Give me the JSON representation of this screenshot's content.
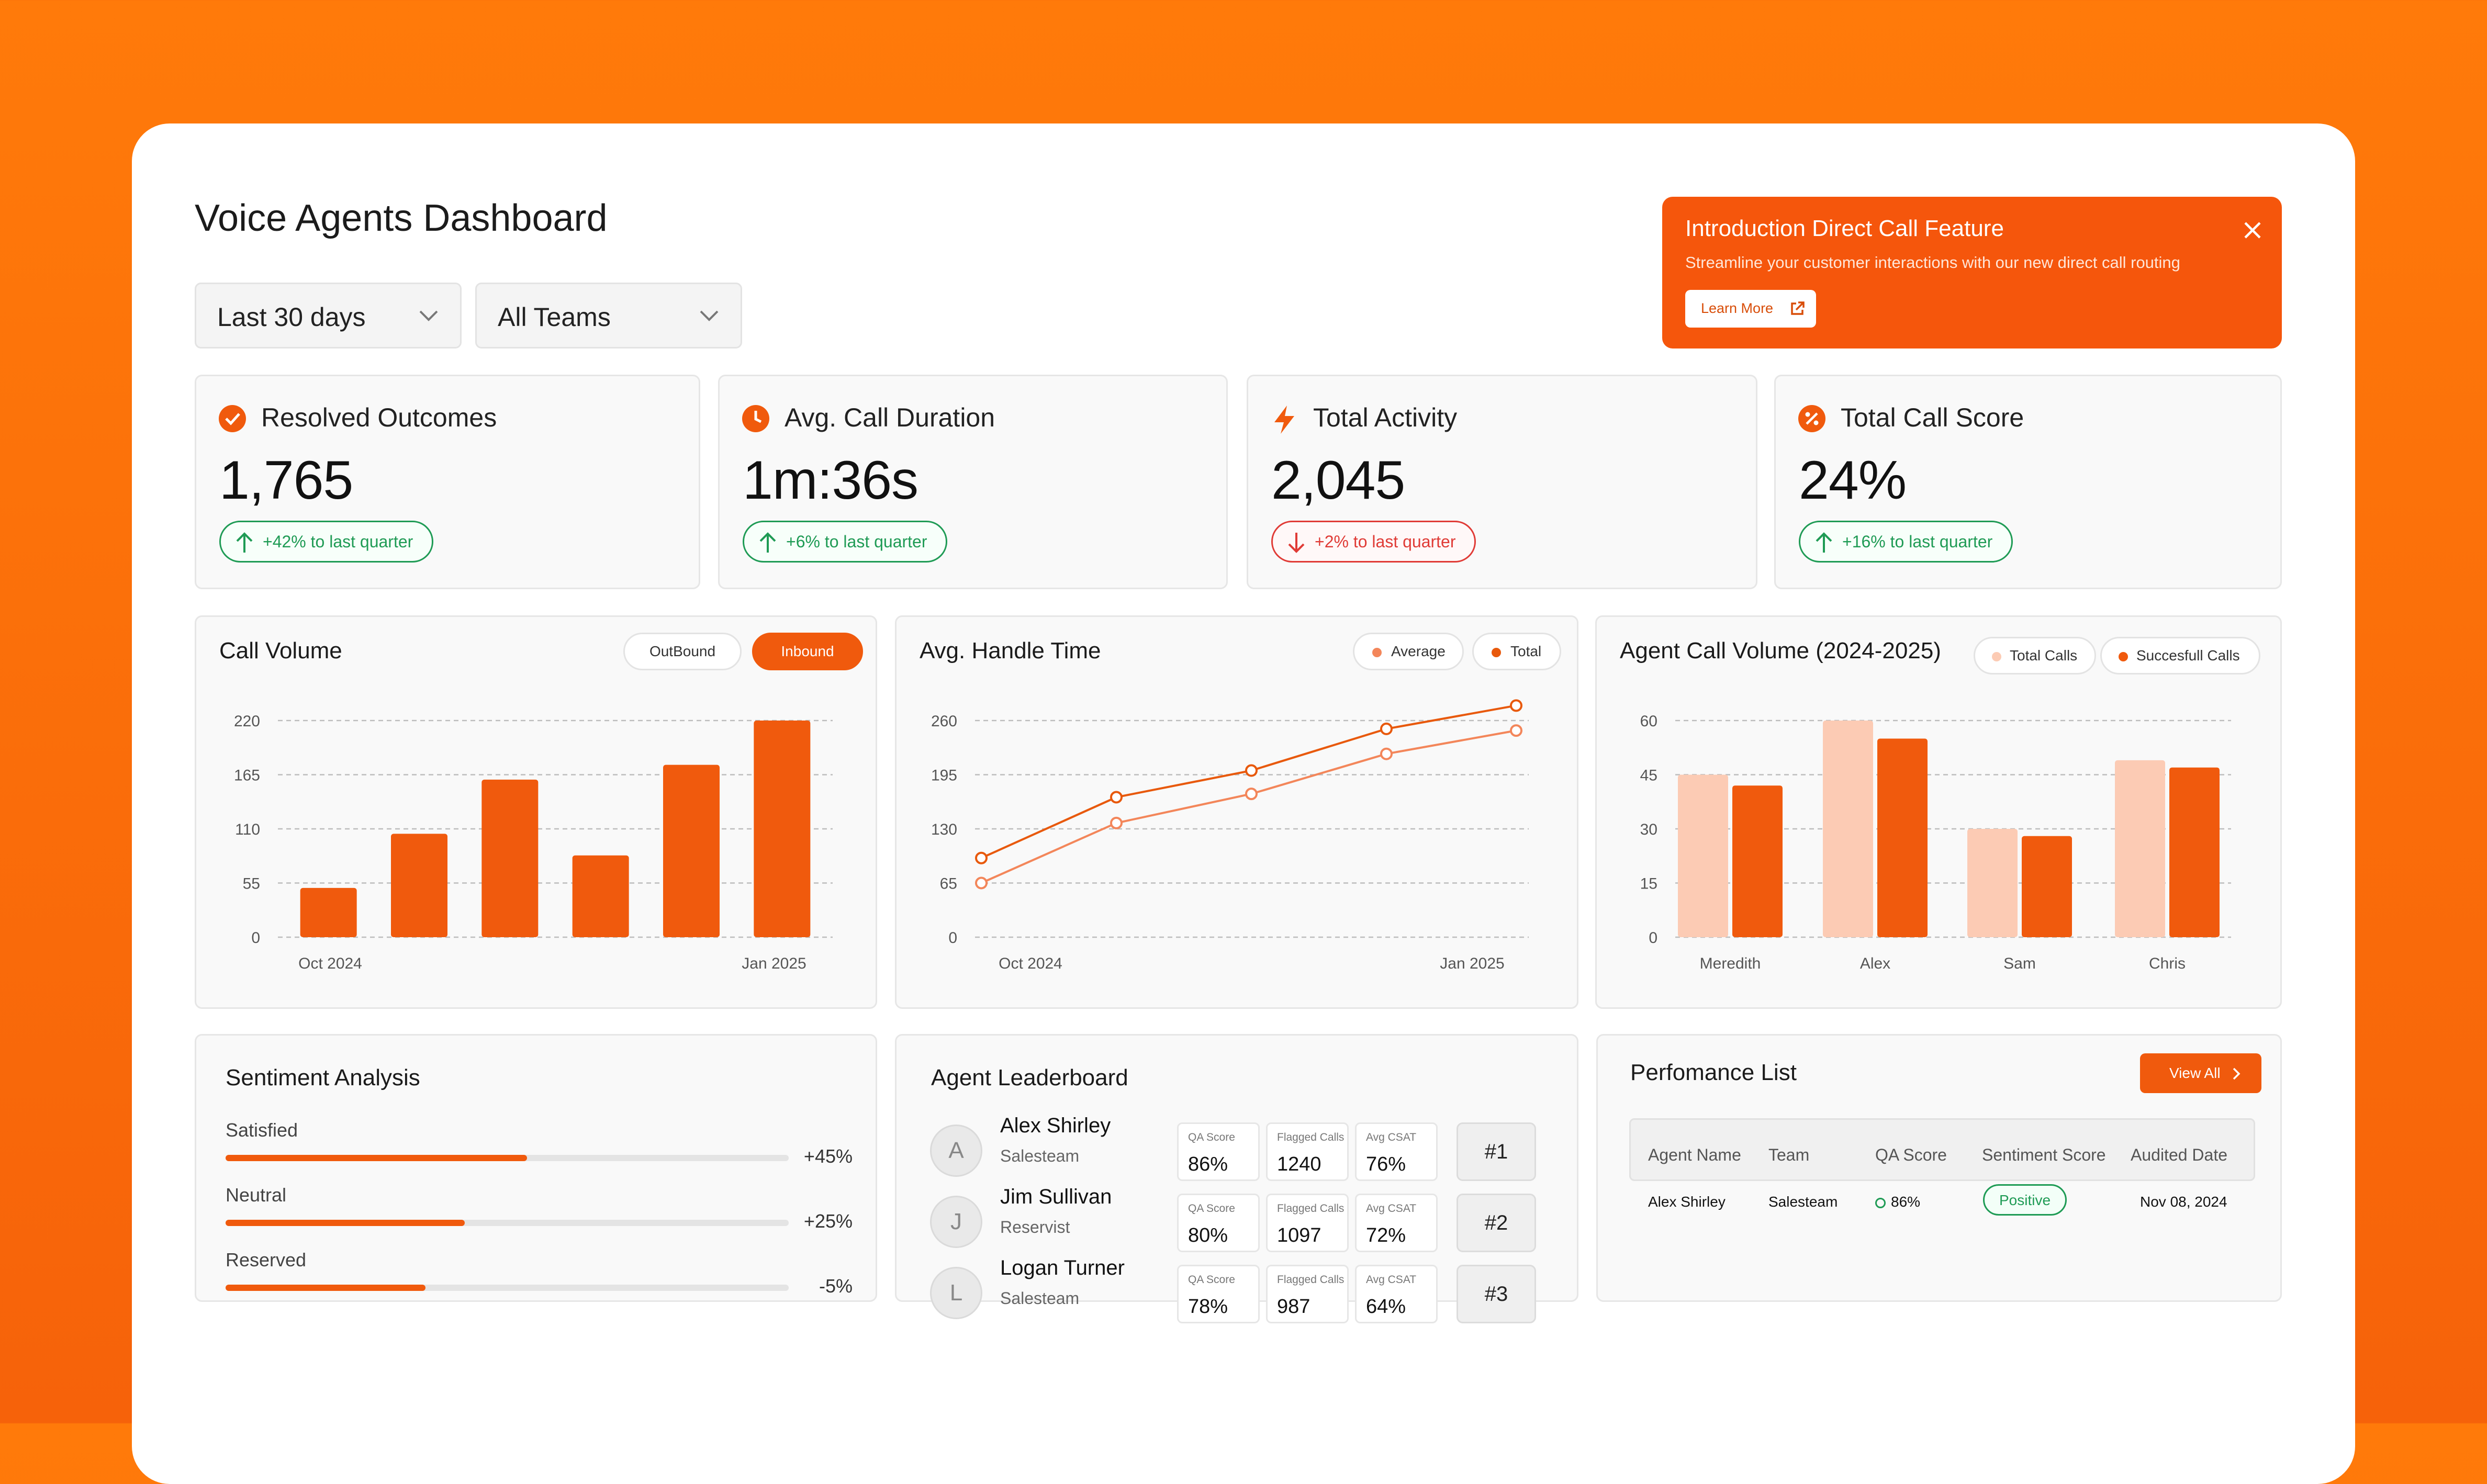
{
  "page": {
    "title": "Voice Agents Dashboard"
  },
  "filters": {
    "range": "Last 30 days",
    "teams": "All Teams"
  },
  "banner": {
    "title": "Introduction Direct Call Feature",
    "text": "Streamline your customer interactions with our new direct call routing",
    "button": "Learn More",
    "bg": "#f5560c"
  },
  "kpis": [
    {
      "title": "Resolved Outcomes",
      "value": "1,765",
      "change": "+42% to last quarter",
      "trend": "up"
    },
    {
      "title": "Avg. Call Duration",
      "value": "1m:36s",
      "change": "+6% to last quarter",
      "trend": "up"
    },
    {
      "title": "Total Activity",
      "value": "2,045",
      "change": "+2% to last quarter",
      "trend": "down"
    },
    {
      "title": "Total Call Score",
      "value": "24%",
      "change": "+16% to last quarter",
      "trend": "up"
    }
  ],
  "call_volume": {
    "title": "Call Volume",
    "toggle": [
      "OutBound",
      "Inbound"
    ]
  },
  "handle_time": {
    "title": "Avg. Handle Time",
    "legend": [
      "Average",
      "Total"
    ]
  },
  "agent_volume": {
    "title": "Agent Call Volume (2024-2025)",
    "legend": [
      "Total Calls",
      "Succesfull Calls"
    ]
  },
  "chart_data": [
    {
      "type": "bar",
      "title": "Call Volume",
      "categories": [
        "Oct 2024",
        "",
        "",
        "",
        "",
        "Jan 2025"
      ],
      "values": [
        50,
        105,
        160,
        83,
        175,
        220
      ],
      "ylim": [
        0,
        220
      ],
      "yticks": [
        "0",
        "55",
        "110",
        "165",
        "220"
      ],
      "xlabels": [
        "Oct 2024",
        "Jan 2025"
      ],
      "color": "#f05a0d"
    },
    {
      "type": "line",
      "title": "Avg. Handle Time",
      "ylim": [
        0,
        260
      ],
      "yticks": [
        "0",
        "65",
        "130",
        "195",
        "260"
      ],
      "xlabels": [
        "Oct 2024",
        "Jan 2025"
      ],
      "series": [
        {
          "name": "Average",
          "values": [
            95,
            168,
            200,
            250,
            278
          ],
          "color": "#e8590c"
        },
        {
          "name": "Total",
          "values": [
            65,
            137,
            172,
            220,
            248
          ],
          "color": "#f3865a"
        }
      ]
    },
    {
      "type": "bar",
      "title": "Agent Call Volume (2024-2025)",
      "categories": [
        "Meredith",
        "Alex",
        "Sam",
        "Chris"
      ],
      "ylim": [
        0,
        60
      ],
      "yticks": [
        "0",
        "15",
        "30",
        "45",
        "60"
      ],
      "series": [
        {
          "name": "Total Calls",
          "values": [
            45,
            60,
            30,
            49
          ],
          "color": "#fccbb4"
        },
        {
          "name": "Succesfull Calls",
          "values": [
            42,
            55,
            28,
            47
          ],
          "color": "#f05a0d"
        }
      ]
    }
  ],
  "sentiment": {
    "title": "Sentiment Analysis",
    "items": [
      {
        "label": "Satisfied",
        "value": "+45%",
        "fill": 0.535
      },
      {
        "label": "Neutral",
        "value": "+25%",
        "fill": 0.425
      },
      {
        "label": "Reserved",
        "value": "-5%",
        "fill": 0.355
      }
    ]
  },
  "leaderboard": {
    "title": "Agent Leaderboard",
    "labels": {
      "qa": "QA Score",
      "flagged": "Flagged Calls",
      "csat": "Avg CSAT"
    },
    "agents": [
      {
        "initial": "A",
        "name": "Alex Shirley",
        "team": "Salesteam",
        "qa": "86%",
        "flagged": "1240",
        "csat": "76%",
        "rank": "#1"
      },
      {
        "initial": "J",
        "name": "Jim Sullivan",
        "team": "Reservist",
        "qa": "80%",
        "flagged": "1097",
        "csat": "72%",
        "rank": "#2"
      },
      {
        "initial": "L",
        "name": "Logan Turner",
        "team": "Salesteam",
        "qa": "78%",
        "flagged": "987",
        "csat": "64%",
        "rank": "#3"
      }
    ]
  },
  "performance": {
    "title": "Perfomance List",
    "view_all": "View All",
    "columns": [
      "Agent Name",
      "Team",
      "QA Score",
      "Sentiment Score",
      "Audited Date"
    ],
    "rows": [
      {
        "agent": "Alex Shirley",
        "team": "Salesteam",
        "qa": "86%",
        "sentiment": "Positive",
        "date": "Nov 08, 2024"
      }
    ]
  }
}
